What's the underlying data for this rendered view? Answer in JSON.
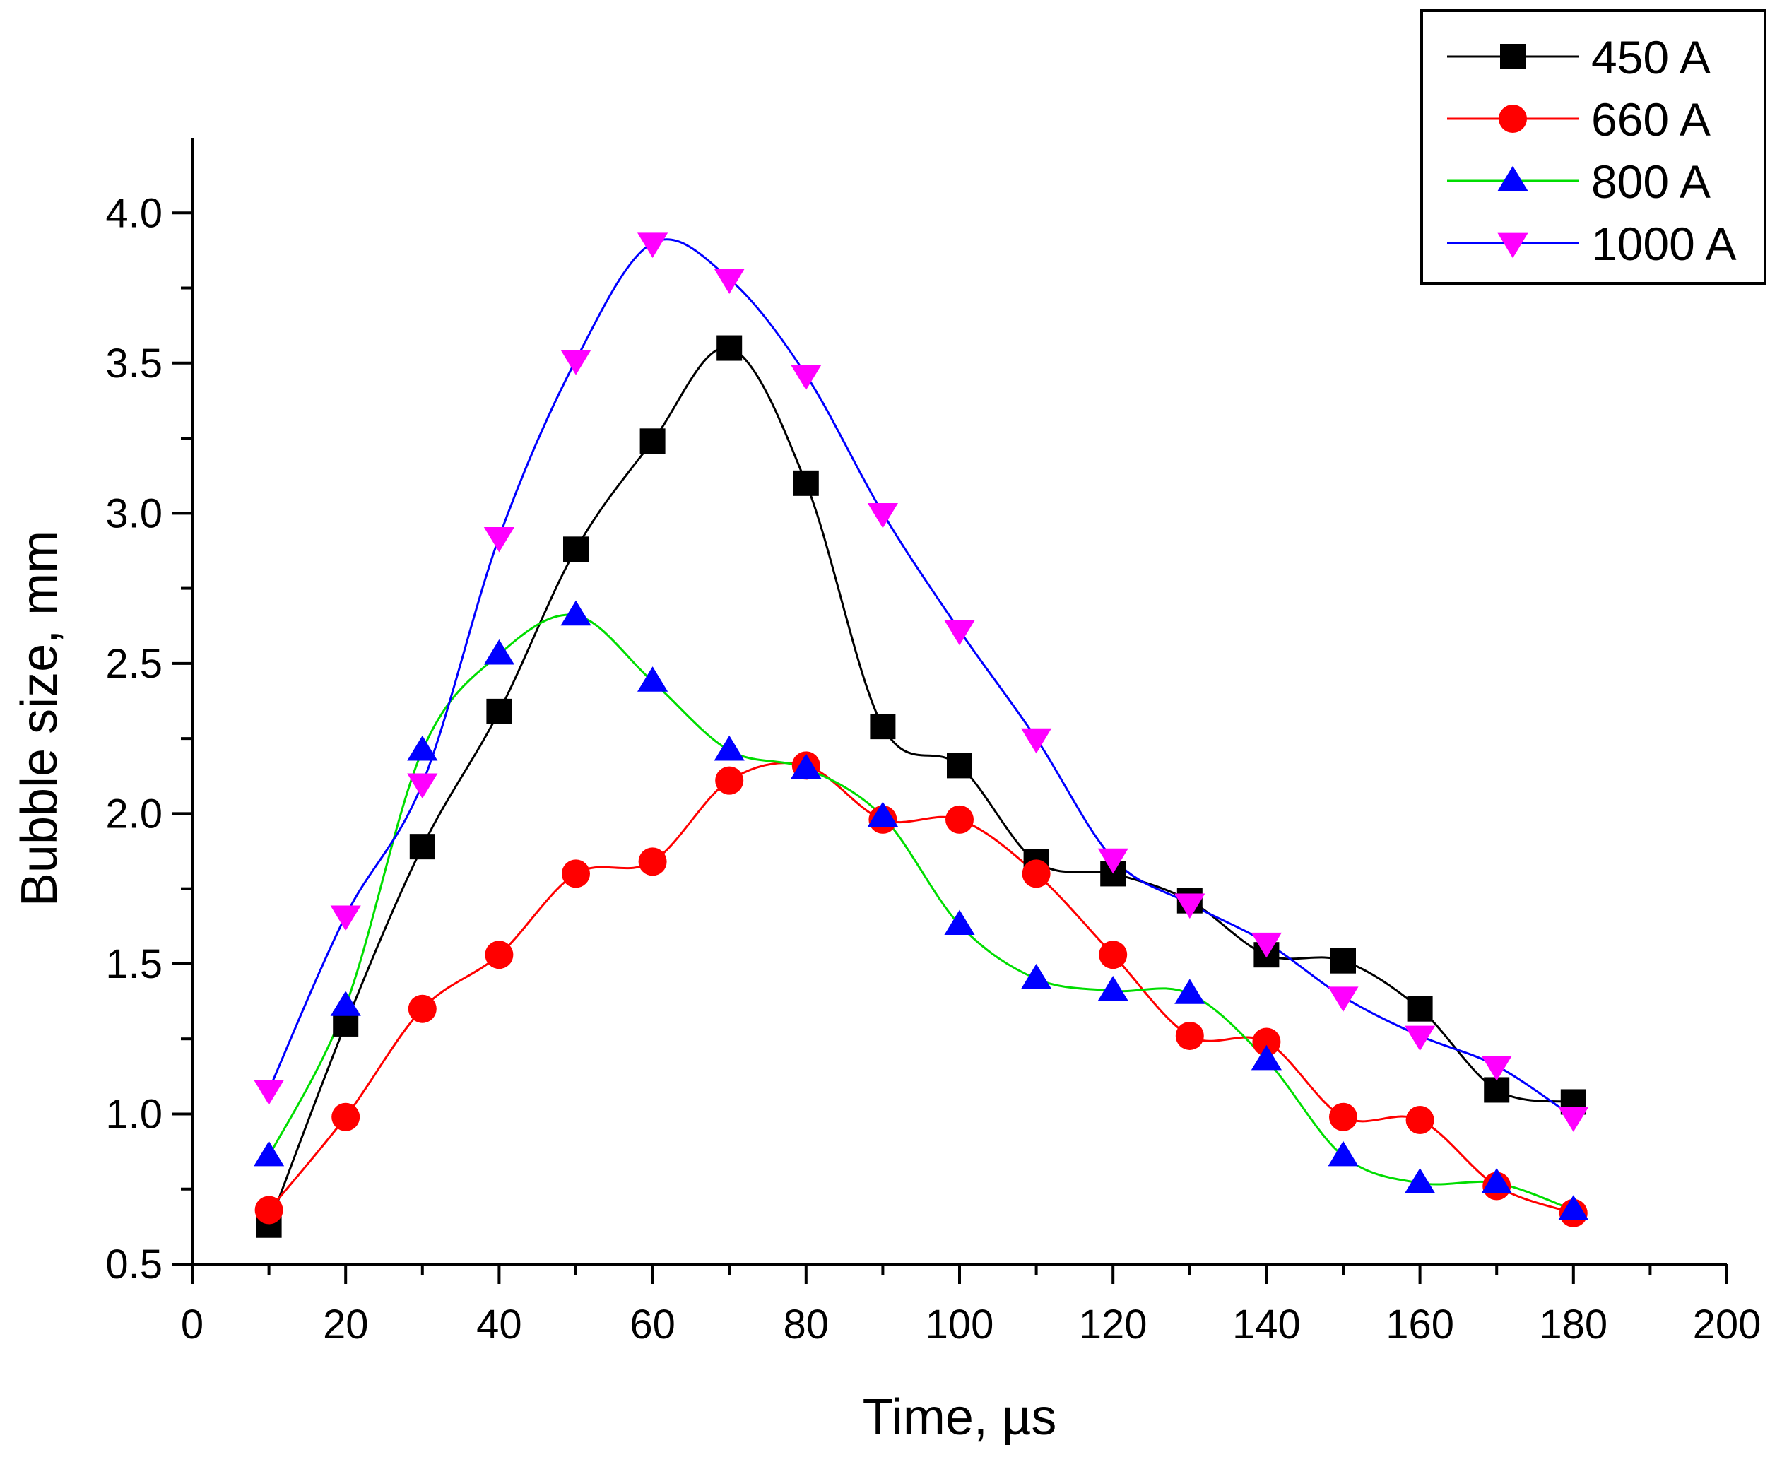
{
  "chart_data": {
    "type": "line",
    "title": "",
    "xlabel": "Time, µs",
    "ylabel": "Bubble size, mm",
    "xlim": [
      0,
      200
    ],
    "ylim": [
      0.5,
      4.25
    ],
    "x_major_ticks": [
      0,
      20,
      40,
      60,
      80,
      100,
      120,
      140,
      160,
      180,
      200
    ],
    "y_major_ticks": [
      0.5,
      1.0,
      1.5,
      2.0,
      2.5,
      3.0,
      3.5,
      4.0
    ],
    "x_tick_labels": [
      "0",
      "20",
      "40",
      "60",
      "80",
      "100",
      "120",
      "140",
      "160",
      "180",
      "200"
    ],
    "y_tick_labels": [
      "0.5",
      "1.0",
      "1.5",
      "2.0",
      "2.5",
      "3.0",
      "3.5",
      "4.0"
    ],
    "grid": false,
    "legend_position": "top-right",
    "x": [
      10,
      20,
      30,
      40,
      50,
      60,
      70,
      80,
      90,
      100,
      110,
      120,
      130,
      140,
      150,
      160,
      170,
      180
    ],
    "series": [
      {
        "name": "450 A",
        "marker": "square",
        "line_color": "#000000",
        "marker_color": "#000000",
        "values": [
          0.63,
          1.3,
          1.89,
          2.34,
          2.88,
          3.24,
          3.55,
          3.1,
          2.29,
          2.16,
          1.84,
          1.8,
          1.71,
          1.53,
          1.51,
          1.35,
          1.08,
          1.04
        ]
      },
      {
        "name": "660 A",
        "marker": "circle",
        "line_color": "#ff0000",
        "marker_color": "#ff0000",
        "values": [
          0.68,
          0.99,
          1.35,
          1.53,
          1.8,
          1.84,
          2.11,
          2.16,
          1.98,
          1.98,
          1.8,
          1.53,
          1.26,
          1.24,
          0.99,
          0.98,
          0.76,
          0.67
        ]
      },
      {
        "name": "800 A",
        "marker": "triangle-up",
        "line_color": "#00dd00",
        "marker_color": "#0000ff",
        "values": [
          0.86,
          1.36,
          2.21,
          2.53,
          2.66,
          2.44,
          2.21,
          2.15,
          1.99,
          1.63,
          1.45,
          1.41,
          1.4,
          1.18,
          0.86,
          0.77,
          0.77,
          0.68
        ]
      },
      {
        "name": "1000 A",
        "marker": "triangle-down",
        "line_color": "#0000ff",
        "marker_color": "#ff00ff",
        "values": [
          1.08,
          1.66,
          2.1,
          2.92,
          3.51,
          3.9,
          3.78,
          3.46,
          3.0,
          2.61,
          2.25,
          1.85,
          1.7,
          1.57,
          1.39,
          1.26,
          1.16,
          0.99
        ]
      }
    ]
  }
}
